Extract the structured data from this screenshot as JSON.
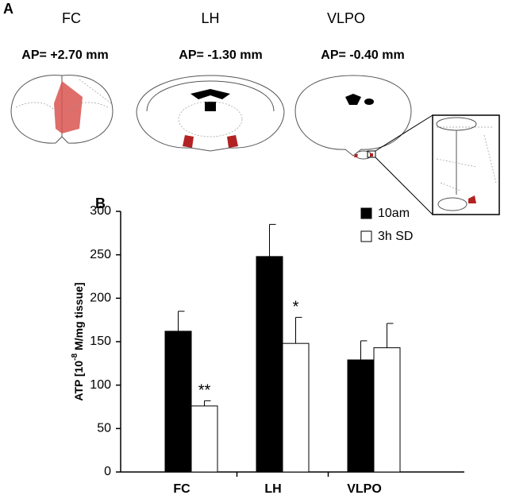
{
  "panel_a": {
    "label": "A",
    "sections": [
      {
        "region": "FC",
        "ap": "AP= +2.70 mm"
      },
      {
        "region": "LH",
        "ap": "AP= -1.30 mm"
      },
      {
        "region": "VLPO",
        "ap": "AP= -0.40 mm"
      }
    ]
  },
  "chart_data": {
    "type": "bar",
    "panel_label": "B",
    "ylabel": {
      "prefix": "ATP [10",
      "exponent": "-8",
      "suffix": " M/mg tissue]"
    },
    "categories": [
      "FC",
      "LH",
      "VLPO"
    ],
    "series": [
      {
        "name": "10am",
        "color": "#000000",
        "values": [
          162,
          248,
          129
        ],
        "errors": [
          23,
          37,
          22
        ],
        "significance": [
          null,
          null,
          null
        ]
      },
      {
        "name": "3h SD",
        "color": "#ffffff",
        "values": [
          76,
          148,
          143
        ],
        "errors": [
          6,
          30,
          28
        ],
        "significance": [
          "**",
          "*",
          null
        ]
      }
    ],
    "ylim": [
      0,
      300
    ],
    "yticks": [
      0,
      50,
      100,
      150,
      200,
      250,
      300
    ],
    "legend": "top-right"
  }
}
